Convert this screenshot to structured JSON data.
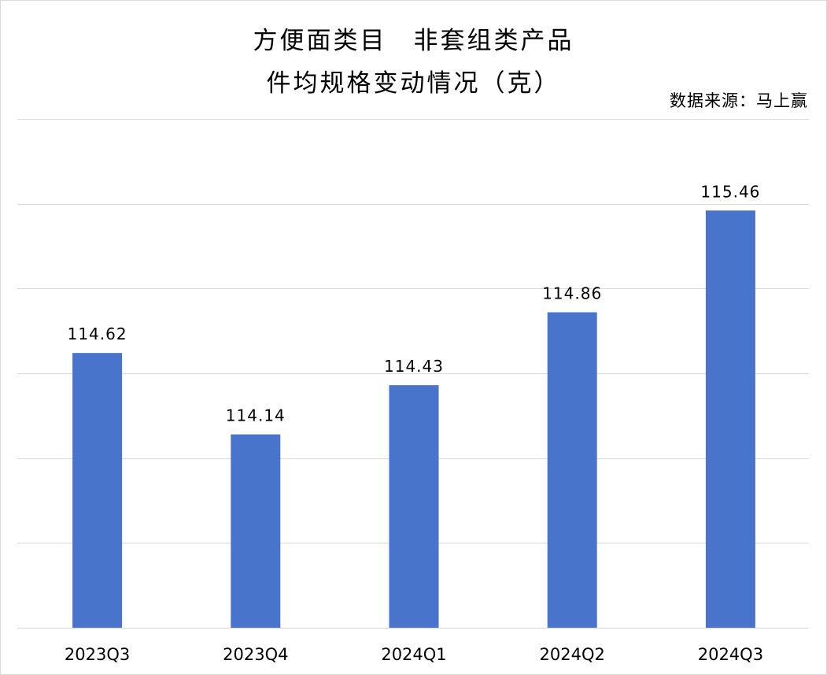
{
  "chart_data": {
    "type": "bar",
    "title_lines": [
      "方便面类目　非套组类产品",
      "件均规格变动情况（克）"
    ],
    "source": "数据来源：马上赢",
    "categories": [
      "2023Q3",
      "2023Q4",
      "2024Q1",
      "2024Q2",
      "2024Q3"
    ],
    "values": [
      114.62,
      114.14,
      114.43,
      114.86,
      115.46
    ],
    "value_labels": [
      "114.62",
      "114.14",
      "114.43",
      "114.86",
      "115.46"
    ],
    "ylim": [
      113,
      116
    ],
    "ytick_step": 0.5,
    "grid": true,
    "xlabel": "",
    "ylabel": "",
    "bar_color": "#4874cb",
    "grid_color": "#d9d9d9"
  }
}
